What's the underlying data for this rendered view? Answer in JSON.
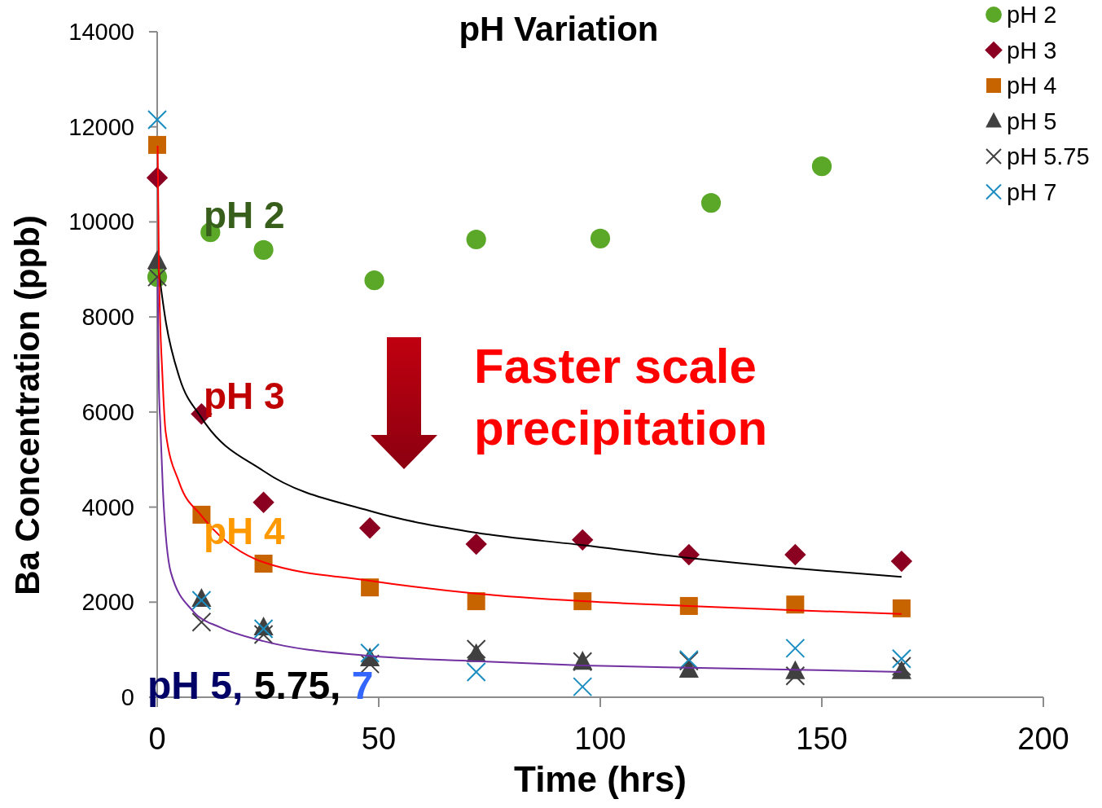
{
  "chart_data": {
    "type": "scatter",
    "title": "pH Variation",
    "xlabel": "Time (hrs)",
    "ylabel": "Ba Concentration (ppb)",
    "xlim": [
      0,
      200
    ],
    "xticks": [
      0,
      50,
      100,
      150,
      200
    ],
    "ylim": [
      0,
      14000
    ],
    "yticks": [
      0,
      2000,
      4000,
      6000,
      8000,
      10000,
      12000,
      14000
    ],
    "grid": false,
    "legend": "top right",
    "series": [
      {
        "name": "pH 2",
        "color": "#5ba829",
        "marker": "circle",
        "x": [
          0,
          12,
          24,
          49,
          72,
          100,
          125,
          150
        ],
        "values": [
          8840,
          9780,
          9410,
          8770,
          9630,
          9650,
          10400,
          11170
        ]
      },
      {
        "name": "pH 3",
        "color": "#8b0020",
        "marker": "diamond",
        "x": [
          0,
          10,
          24,
          48,
          72,
          96,
          120,
          144,
          168
        ],
        "values": [
          10930,
          5960,
          4100,
          3560,
          3220,
          3310,
          3000,
          3000,
          2860
        ]
      },
      {
        "name": "pH 4",
        "color": "#c86400",
        "marker": "square",
        "x": [
          0,
          10,
          24,
          48,
          72,
          96,
          120,
          144,
          168
        ],
        "values": [
          11620,
          3840,
          2810,
          2310,
          2020,
          2020,
          1920,
          1950,
          1870
        ]
      },
      {
        "name": "pH 5",
        "color": "#404040",
        "marker": "triangle",
        "x": [
          0,
          10,
          24,
          48,
          72,
          96,
          120,
          144,
          168
        ],
        "values": [
          9180,
          2070,
          1470,
          820,
          910,
          750,
          580,
          550,
          550
        ]
      },
      {
        "name": "pH 5.75",
        "color": "#404040",
        "marker": "cross",
        "x": [
          0,
          10,
          24,
          48,
          72,
          96,
          120,
          144,
          168
        ],
        "values": [
          8840,
          1580,
          1320,
          700,
          1010,
          750,
          760,
          450,
          650
        ]
      },
      {
        "name": "pH 7",
        "color": "#1a8cc0",
        "marker": "cross",
        "x": [
          0,
          10,
          24,
          48,
          72,
          96,
          120,
          144,
          168
        ],
        "values": [
          12150,
          2040,
          1440,
          930,
          530,
          220,
          790,
          1030,
          810
        ]
      },
      {
        "type": "line",
        "color": "#000000",
        "marker": "none",
        "x": [
          0.3,
          2,
          5,
          10,
          24,
          48,
          72,
          96,
          120,
          144,
          168
        ],
        "values": [
          9000,
          7870,
          6730,
          5880,
          4760,
          3920,
          3460,
          3200,
          2930,
          2710,
          2530
        ]
      },
      {
        "type": "line",
        "color": "#ff0000",
        "marker": "none",
        "x": [
          0.1,
          0.4,
          1.2,
          1.9,
          5,
          10,
          24,
          48,
          72,
          96,
          120,
          144,
          168
        ],
        "values": [
          11600,
          9000,
          6730,
          5590,
          4510,
          3820,
          2840,
          2450,
          2180,
          2020,
          1920,
          1830,
          1750
        ]
      },
      {
        "type": "line",
        "color": "#7030a0",
        "marker": "none",
        "x": [
          0.1,
          0.4,
          0.7,
          1.3,
          3.1,
          8,
          14.2,
          24,
          48,
          72,
          96,
          120,
          144,
          168
        ],
        "values": [
          8800,
          6500,
          5760,
          4340,
          2620,
          1820,
          1470,
          1180,
          870,
          760,
          670,
          620,
          580,
          530
        ]
      }
    ],
    "annotations": [
      "pH 2",
      "pH 3",
      "pH 4",
      "pH 5, 5.75, 7",
      "Faster scale precipitation"
    ]
  }
}
